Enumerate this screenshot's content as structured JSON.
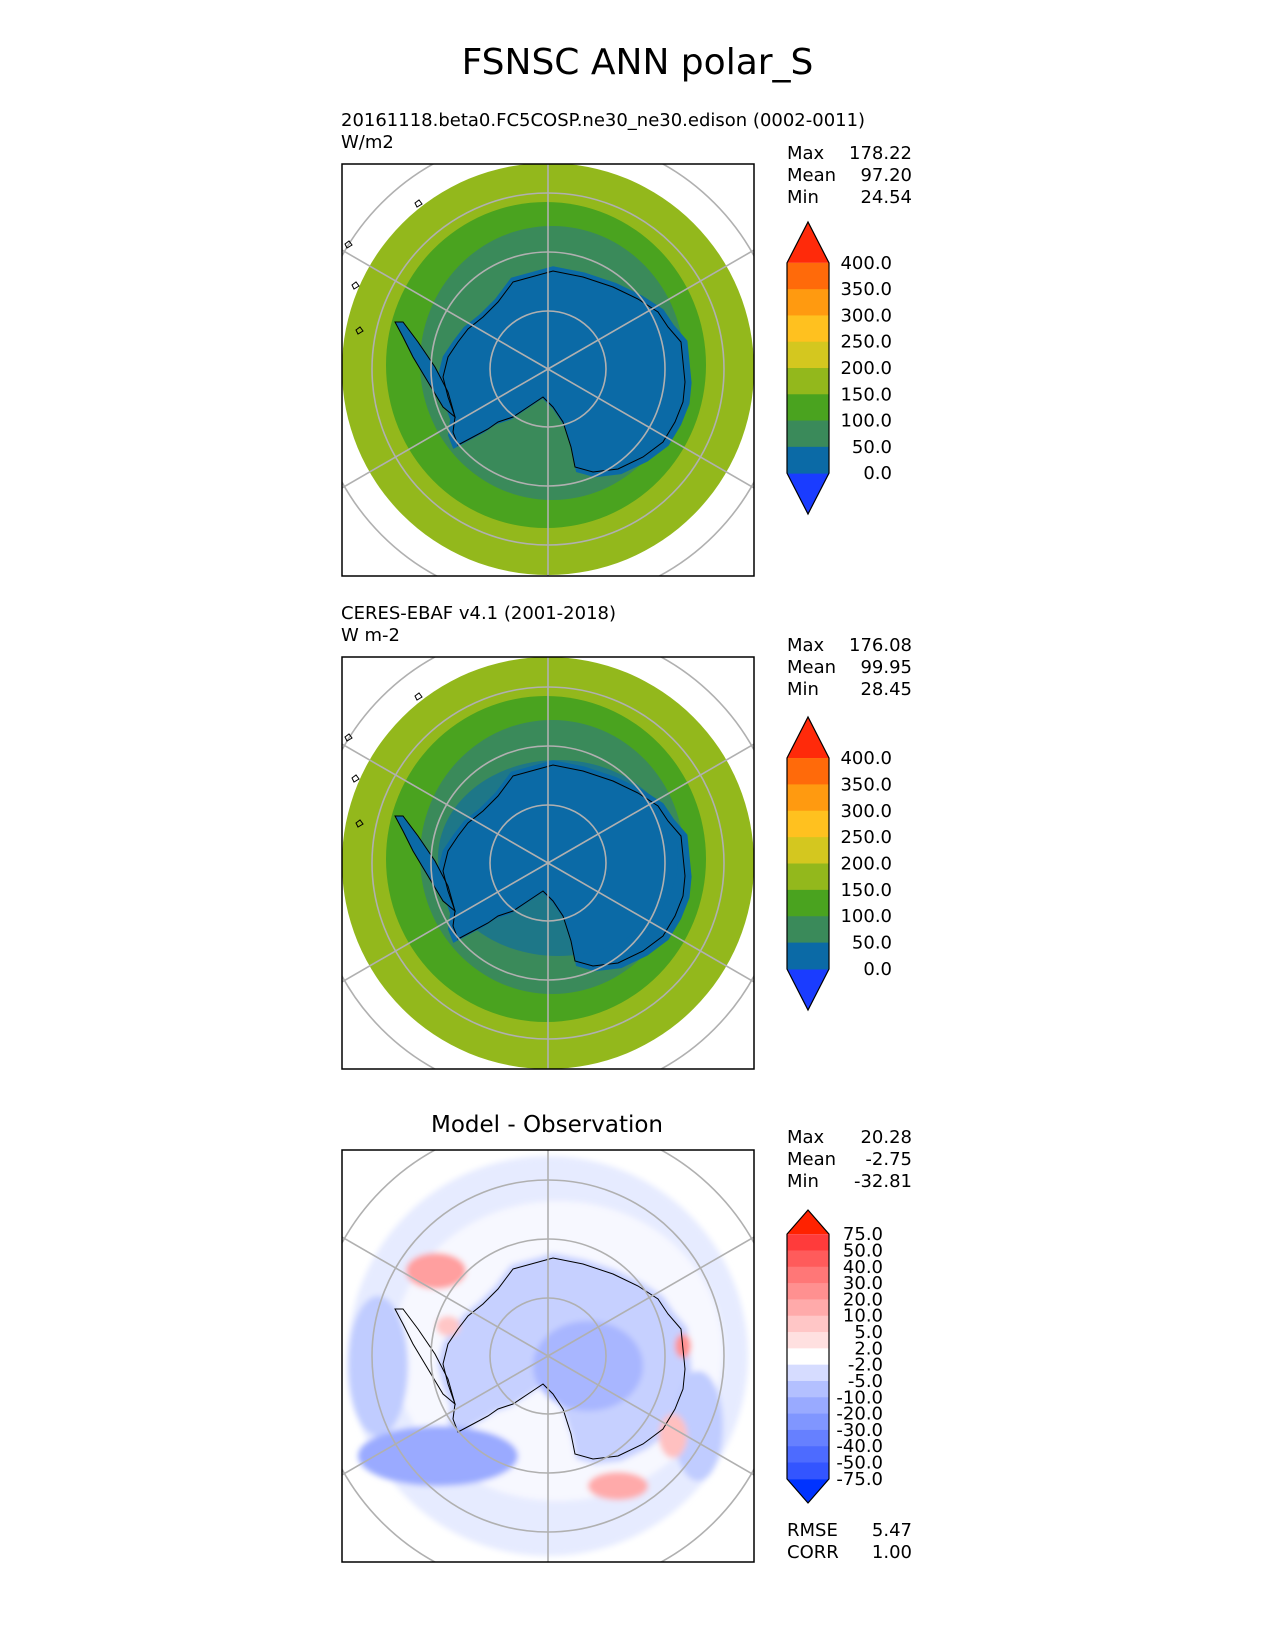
{
  "title": "FSNSC ANN polar_S",
  "panels": [
    {
      "subtitle": "20161118.beta0.FC5COSP.ne30_ne30.edison (0002-0011)",
      "units": "W/m2",
      "stats": [
        {
          "name": "Max",
          "value": "178.22"
        },
        {
          "name": "Mean",
          "value": "97.20"
        },
        {
          "name": "Min",
          "value": "24.54"
        }
      ]
    },
    {
      "subtitle": "CERES-EBAF v4.1 (2001-2018)",
      "units": "W m-2",
      "stats": [
        {
          "name": "Max",
          "value": "176.08"
        },
        {
          "name": "Mean",
          "value": "99.95"
        },
        {
          "name": "Min",
          "value": "28.45"
        }
      ]
    },
    {
      "subtitle": "Model - Observation",
      "units": "",
      "stats": [
        {
          "name": "Max",
          "value": "20.28"
        },
        {
          "name": "Mean",
          "value": "-2.75"
        },
        {
          "name": "Min",
          "value": "-32.81"
        }
      ],
      "metrics": [
        {
          "name": "RMSE",
          "value": "5.47"
        },
        {
          "name": "CORR",
          "value": "1.00"
        }
      ]
    }
  ],
  "chart_data": [
    {
      "type": "heatmap",
      "projection": "south polar stereographic",
      "variable": "FSNSC",
      "season": "ANN",
      "dataset": "20161118.beta0.FC5COSP.ne30_ne30.edison (0002-0011)",
      "units": "W/m2",
      "stats": {
        "max": 178.22,
        "mean": 97.2,
        "min": 24.54
      },
      "colorbar": {
        "levels": [
          "0.0",
          "50.0",
          "100.0",
          "150.0",
          "200.0",
          "250.0",
          "300.0",
          "350.0",
          "400.0"
        ],
        "colors": [
          "#1a3cff",
          "#0b6aa6",
          "#3a8a5a",
          "#4aa31f",
          "#93b81c",
          "#d4c71f",
          "#ffc11f",
          "#ff9a10",
          "#ff6a0a",
          "#ff2a0a"
        ],
        "extend": "both"
      }
    },
    {
      "type": "heatmap",
      "projection": "south polar stereographic",
      "variable": "FSNSC",
      "season": "ANN",
      "dataset": "CERES-EBAF v4.1 (2001-2018)",
      "units": "W m-2",
      "stats": {
        "max": 176.08,
        "mean": 99.95,
        "min": 28.45
      },
      "colorbar": {
        "levels": [
          "0.0",
          "50.0",
          "100.0",
          "150.0",
          "200.0",
          "250.0",
          "300.0",
          "350.0",
          "400.0"
        ],
        "colors": [
          "#1a3cff",
          "#0b6aa6",
          "#3a8a5a",
          "#4aa31f",
          "#93b81c",
          "#d4c71f",
          "#ffc11f",
          "#ff9a10",
          "#ff6a0a",
          "#ff2a0a"
        ],
        "extend": "both"
      }
    },
    {
      "type": "heatmap",
      "projection": "south polar stereographic",
      "title": "Model - Observation",
      "stats": {
        "max": 20.28,
        "mean": -2.75,
        "min": -32.81
      },
      "metrics": {
        "rmse": 5.47,
        "corr": 1.0
      },
      "colorbar": {
        "levels": [
          "-75.0",
          "-50.0",
          "-40.0",
          "-30.0",
          "-20.0",
          "-10.0",
          "-5.0",
          "-2.0",
          "2.0",
          "5.0",
          "10.0",
          "20.0",
          "30.0",
          "40.0",
          "50.0",
          "75.0"
        ],
        "colors": [
          "#0033ff",
          "#3355ff",
          "#4d6bff",
          "#6680ff",
          "#8096ff",
          "#99aaff",
          "#b3c0ff",
          "#d6dcff",
          "#ffffff",
          "#ffe0e0",
          "#ffc6c6",
          "#ffaaaa",
          "#ff9090",
          "#ff7777",
          "#ff5b5b",
          "#ff3b3b",
          "#ff2200"
        ],
        "extend": "both"
      }
    }
  ]
}
